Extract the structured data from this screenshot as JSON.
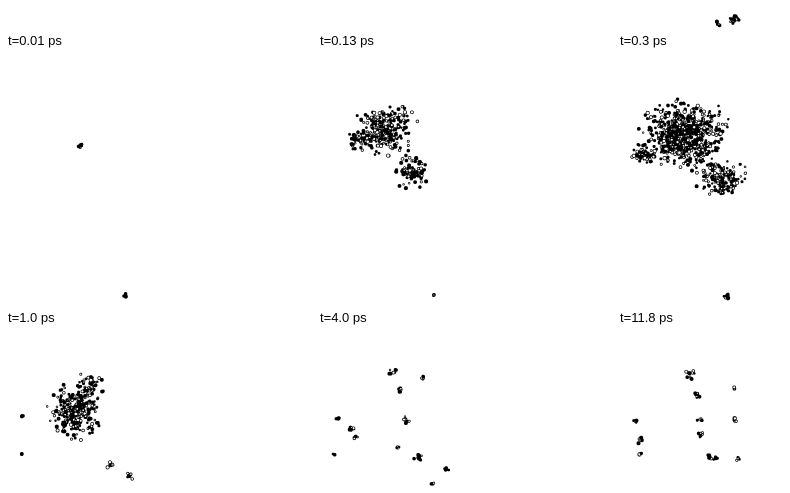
{
  "panels": [
    {
      "label": "t=0.01 ps"
    },
    {
      "label": "t=0.13 ps"
    },
    {
      "label": "t=0.3 ps"
    },
    {
      "label": "t=1.0 ps"
    },
    {
      "label": "t=4.0 ps"
    },
    {
      "label": "t=11.8 ps"
    }
  ]
}
